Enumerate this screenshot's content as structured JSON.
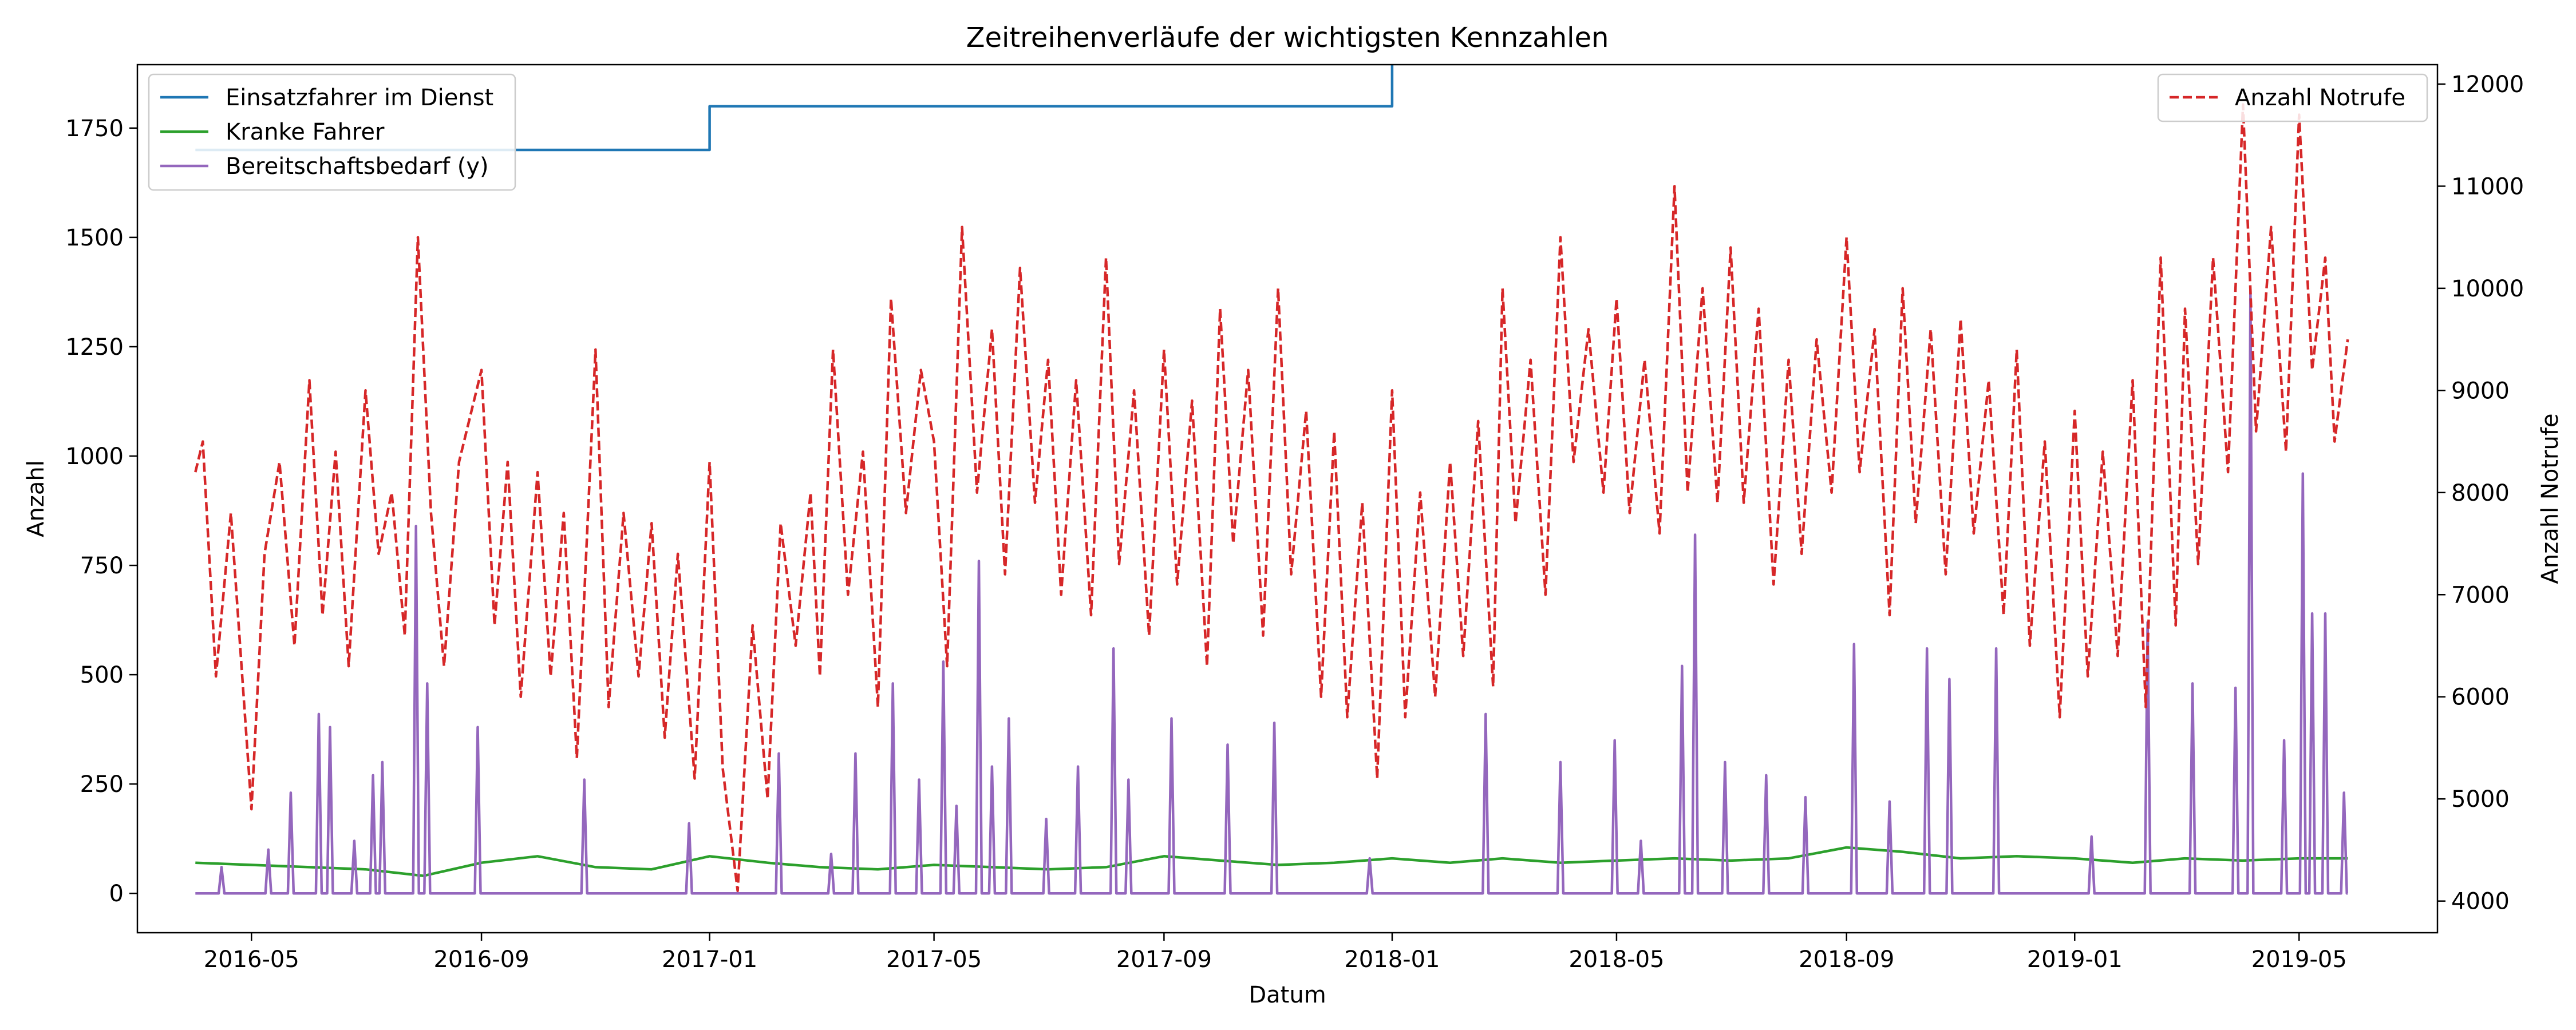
{
  "chart_data": {
    "type": "line",
    "title": "Zeitreihenverläufe der wichtigsten Kennzahlen",
    "xlabel": "Datum",
    "ylabel": "Anzahl",
    "ylabel_right": "Anzahl Notrufe",
    "x_range": [
      "2016-03-01",
      "2019-07-14"
    ],
    "ylim": [
      -90,
      1895
    ],
    "ylim_right": [
      3690,
      12190
    ],
    "x_ticks": [
      "2016-05",
      "2016-09",
      "2017-01",
      "2017-05",
      "2017-09",
      "2018-01",
      "2018-05",
      "2018-09",
      "2019-01",
      "2019-05"
    ],
    "y_ticks": [
      0,
      250,
      500,
      750,
      1000,
      1250,
      1500,
      1750
    ],
    "y_ticks_right": [
      4000,
      5000,
      6000,
      7000,
      8000,
      9000,
      10000,
      11000,
      12000
    ],
    "grid": false,
    "legend_left": "top-left",
    "legend_right": "top-right",
    "series": [
      {
        "name": "Einsatzfahrer im Dienst",
        "axis": "left",
        "color": "#1f77b4",
        "style": "solid",
        "steps": [
          {
            "from": "2016-04-01",
            "value": 1700
          },
          {
            "from": "2017-01-01",
            "value": 1800
          },
          {
            "from": "2018-01-01",
            "value": 1900
          }
        ],
        "end": "2019-05-27"
      },
      {
        "name": "Kranke Fahrer",
        "axis": "left",
        "color": "#2ca02c",
        "style": "solid",
        "points": [
          [
            "2016-04-01",
            70
          ],
          [
            "2016-05-01",
            65
          ],
          [
            "2016-06-01",
            60
          ],
          [
            "2016-07-01",
            55
          ],
          [
            "2016-08-01",
            40
          ],
          [
            "2016-09-01",
            70
          ],
          [
            "2016-10-01",
            85
          ],
          [
            "2016-11-01",
            60
          ],
          [
            "2016-12-01",
            55
          ],
          [
            "2017-01-01",
            85
          ],
          [
            "2017-02-01",
            70
          ],
          [
            "2017-03-01",
            60
          ],
          [
            "2017-04-01",
            55
          ],
          [
            "2017-05-01",
            65
          ],
          [
            "2017-06-01",
            60
          ],
          [
            "2017-07-01",
            55
          ],
          [
            "2017-08-01",
            60
          ],
          [
            "2017-09-01",
            85
          ],
          [
            "2017-10-01",
            75
          ],
          [
            "2017-11-01",
            65
          ],
          [
            "2017-12-01",
            70
          ],
          [
            "2018-01-01",
            80
          ],
          [
            "2018-02-01",
            70
          ],
          [
            "2018-03-01",
            80
          ],
          [
            "2018-04-01",
            70
          ],
          [
            "2018-05-01",
            75
          ],
          [
            "2018-06-01",
            80
          ],
          [
            "2018-07-01",
            75
          ],
          [
            "2018-08-01",
            80
          ],
          [
            "2018-09-01",
            105
          ],
          [
            "2018-10-01",
            95
          ],
          [
            "2018-11-01",
            80
          ],
          [
            "2018-12-01",
            85
          ],
          [
            "2019-01-01",
            80
          ],
          [
            "2019-02-01",
            70
          ],
          [
            "2019-03-01",
            80
          ],
          [
            "2019-04-01",
            75
          ],
          [
            "2019-05-01",
            80
          ],
          [
            "2019-05-27",
            80
          ]
        ]
      },
      {
        "name": "Bereitschaftsbedarf (y)",
        "axis": "left",
        "color": "#9467bd",
        "style": "solid",
        "spikes": [
          [
            "2016-04-15",
            60
          ],
          [
            "2016-05-10",
            100
          ],
          [
            "2016-05-22",
            230
          ],
          [
            "2016-06-06",
            410
          ],
          [
            "2016-06-12",
            380
          ],
          [
            "2016-06-25",
            120
          ],
          [
            "2016-07-05",
            270
          ],
          [
            "2016-07-10",
            300
          ],
          [
            "2016-07-28",
            840
          ],
          [
            "2016-08-03",
            480
          ],
          [
            "2016-08-30",
            380
          ],
          [
            "2016-10-26",
            260
          ],
          [
            "2016-12-21",
            160
          ],
          [
            "2017-02-07",
            320
          ],
          [
            "2017-03-07",
            90
          ],
          [
            "2017-03-20",
            320
          ],
          [
            "2017-04-09",
            480
          ],
          [
            "2017-04-23",
            260
          ],
          [
            "2017-05-06",
            530
          ],
          [
            "2017-05-13",
            200
          ],
          [
            "2017-05-25",
            760
          ],
          [
            "2017-06-01",
            290
          ],
          [
            "2017-06-10",
            400
          ],
          [
            "2017-06-30",
            170
          ],
          [
            "2017-07-17",
            290
          ],
          [
            "2017-08-05",
            560
          ],
          [
            "2017-08-13",
            260
          ],
          [
            "2017-09-05",
            400
          ],
          [
            "2017-10-05",
            340
          ],
          [
            "2017-10-30",
            390
          ],
          [
            "2017-12-20",
            80
          ],
          [
            "2018-02-20",
            410
          ],
          [
            "2018-04-01",
            300
          ],
          [
            "2018-04-30",
            350
          ],
          [
            "2018-05-14",
            120
          ],
          [
            "2018-06-05",
            520
          ],
          [
            "2018-06-12",
            820
          ],
          [
            "2018-06-28",
            300
          ],
          [
            "2018-07-20",
            270
          ],
          [
            "2018-08-10",
            220
          ],
          [
            "2018-09-05",
            570
          ],
          [
            "2018-09-24",
            210
          ],
          [
            "2018-10-14",
            560
          ],
          [
            "2018-10-26",
            490
          ],
          [
            "2018-11-20",
            560
          ],
          [
            "2019-01-10",
            130
          ],
          [
            "2019-02-09",
            620
          ],
          [
            "2019-03-05",
            480
          ],
          [
            "2019-03-28",
            470
          ],
          [
            "2019-04-05",
            1380
          ],
          [
            "2019-04-23",
            350
          ],
          [
            "2019-05-03",
            960
          ],
          [
            "2019-05-08",
            640
          ],
          [
            "2019-05-15",
            640
          ],
          [
            "2019-05-25",
            230
          ]
        ],
        "end": "2019-05-27"
      },
      {
        "name": "Anzahl Notrufe",
        "axis": "right",
        "color": "#d62728",
        "style": "dashed",
        "points": [
          [
            "2016-04-01",
            8200
          ],
          [
            "2016-04-05",
            8500
          ],
          [
            "2016-04-12",
            6200
          ],
          [
            "2016-04-20",
            7800
          ],
          [
            "2016-05-01",
            4900
          ],
          [
            "2016-05-08",
            7400
          ],
          [
            "2016-05-16",
            8300
          ],
          [
            "2016-05-24",
            6500
          ],
          [
            "2016-06-01",
            9100
          ],
          [
            "2016-06-08",
            6800
          ],
          [
            "2016-06-15",
            8400
          ],
          [
            "2016-06-22",
            6300
          ],
          [
            "2016-07-01",
            9000
          ],
          [
            "2016-07-08",
            7400
          ],
          [
            "2016-07-15",
            8000
          ],
          [
            "2016-07-22",
            6600
          ],
          [
            "2016-07-29",
            10500
          ],
          [
            "2016-08-05",
            7800
          ],
          [
            "2016-08-12",
            6300
          ],
          [
            "2016-08-20",
            8300
          ],
          [
            "2016-09-01",
            9200
          ],
          [
            "2016-09-08",
            6700
          ],
          [
            "2016-09-15",
            8300
          ],
          [
            "2016-09-22",
            6000
          ],
          [
            "2016-10-01",
            8200
          ],
          [
            "2016-10-08",
            6200
          ],
          [
            "2016-10-15",
            7800
          ],
          [
            "2016-10-22",
            5400
          ],
          [
            "2016-11-01",
            9400
          ],
          [
            "2016-11-08",
            5900
          ],
          [
            "2016-11-16",
            7800
          ],
          [
            "2016-11-24",
            6200
          ],
          [
            "2016-12-01",
            7700
          ],
          [
            "2016-12-08",
            5600
          ],
          [
            "2016-12-15",
            7400
          ],
          [
            "2016-12-24",
            5200
          ],
          [
            "2017-01-01",
            8300
          ],
          [
            "2017-01-08",
            5300
          ],
          [
            "2017-01-16",
            4100
          ],
          [
            "2017-01-24",
            6700
          ],
          [
            "2017-02-01",
            5000
          ],
          [
            "2017-02-08",
            7700
          ],
          [
            "2017-02-16",
            6500
          ],
          [
            "2017-02-24",
            8000
          ],
          [
            "2017-03-01",
            6200
          ],
          [
            "2017-03-08",
            9400
          ],
          [
            "2017-03-16",
            7000
          ],
          [
            "2017-03-24",
            8400
          ],
          [
            "2017-04-01",
            5900
          ],
          [
            "2017-04-08",
            9900
          ],
          [
            "2017-04-16",
            7800
          ],
          [
            "2017-04-24",
            9200
          ],
          [
            "2017-05-01",
            8500
          ],
          [
            "2017-05-08",
            6300
          ],
          [
            "2017-05-16",
            10600
          ],
          [
            "2017-05-24",
            8000
          ],
          [
            "2017-06-01",
            9600
          ],
          [
            "2017-06-08",
            7200
          ],
          [
            "2017-06-16",
            10200
          ],
          [
            "2017-06-24",
            7900
          ],
          [
            "2017-07-01",
            9300
          ],
          [
            "2017-07-08",
            7000
          ],
          [
            "2017-07-16",
            9100
          ],
          [
            "2017-07-24",
            6800
          ],
          [
            "2017-08-01",
            10300
          ],
          [
            "2017-08-08",
            7300
          ],
          [
            "2017-08-16",
            9000
          ],
          [
            "2017-08-24",
            6600
          ],
          [
            "2017-09-01",
            9400
          ],
          [
            "2017-09-08",
            7100
          ],
          [
            "2017-09-16",
            8900
          ],
          [
            "2017-09-24",
            6300
          ],
          [
            "2017-10-01",
            9800
          ],
          [
            "2017-10-08",
            7500
          ],
          [
            "2017-10-16",
            9200
          ],
          [
            "2017-10-24",
            6600
          ],
          [
            "2017-11-01",
            10000
          ],
          [
            "2017-11-08",
            7200
          ],
          [
            "2017-11-16",
            8800
          ],
          [
            "2017-11-24",
            6000
          ],
          [
            "2017-12-01",
            8600
          ],
          [
            "2017-12-08",
            5800
          ],
          [
            "2017-12-16",
            7900
          ],
          [
            "2017-12-24",
            5200
          ],
          [
            "2018-01-01",
            9000
          ],
          [
            "2018-01-08",
            5800
          ],
          [
            "2018-01-16",
            8000
          ],
          [
            "2018-01-24",
            6000
          ],
          [
            "2018-02-01",
            8300
          ],
          [
            "2018-02-08",
            6400
          ],
          [
            "2018-02-16",
            8700
          ],
          [
            "2018-02-24",
            6100
          ],
          [
            "2018-03-01",
            10000
          ],
          [
            "2018-03-08",
            7700
          ],
          [
            "2018-03-16",
            9300
          ],
          [
            "2018-03-24",
            7000
          ],
          [
            "2018-04-01",
            10500
          ],
          [
            "2018-04-08",
            8300
          ],
          [
            "2018-04-16",
            9600
          ],
          [
            "2018-04-24",
            8000
          ],
          [
            "2018-05-01",
            9900
          ],
          [
            "2018-05-08",
            7800
          ],
          [
            "2018-05-16",
            9300
          ],
          [
            "2018-05-24",
            7600
          ],
          [
            "2018-06-01",
            11000
          ],
          [
            "2018-06-08",
            8000
          ],
          [
            "2018-06-16",
            10000
          ],
          [
            "2018-06-24",
            7900
          ],
          [
            "2018-07-01",
            10400
          ],
          [
            "2018-07-08",
            7900
          ],
          [
            "2018-07-16",
            9800
          ],
          [
            "2018-07-24",
            7100
          ],
          [
            "2018-08-01",
            9300
          ],
          [
            "2018-08-08",
            7400
          ],
          [
            "2018-08-16",
            9500
          ],
          [
            "2018-08-24",
            8000
          ],
          [
            "2018-09-01",
            10500
          ],
          [
            "2018-09-08",
            8200
          ],
          [
            "2018-09-16",
            9600
          ],
          [
            "2018-09-24",
            6800
          ],
          [
            "2018-10-01",
            10000
          ],
          [
            "2018-10-08",
            7700
          ],
          [
            "2018-10-16",
            9600
          ],
          [
            "2018-10-24",
            7200
          ],
          [
            "2018-11-01",
            9700
          ],
          [
            "2018-11-08",
            7600
          ],
          [
            "2018-11-16",
            9100
          ],
          [
            "2018-11-24",
            6800
          ],
          [
            "2018-12-01",
            9400
          ],
          [
            "2018-12-08",
            6500
          ],
          [
            "2018-12-16",
            8500
          ],
          [
            "2018-12-24",
            5800
          ],
          [
            "2019-01-01",
            8800
          ],
          [
            "2019-01-08",
            6200
          ],
          [
            "2019-01-16",
            8400
          ],
          [
            "2019-01-24",
            6400
          ],
          [
            "2019-02-01",
            9100
          ],
          [
            "2019-02-08",
            5900
          ],
          [
            "2019-02-16",
            10300
          ],
          [
            "2019-02-24",
            6700
          ],
          [
            "2019-03-01",
            9800
          ],
          [
            "2019-03-08",
            7300
          ],
          [
            "2019-03-16",
            10300
          ],
          [
            "2019-03-24",
            8200
          ],
          [
            "2019-04-01",
            11800
          ],
          [
            "2019-04-08",
            8600
          ],
          [
            "2019-04-16",
            10600
          ],
          [
            "2019-04-24",
            8400
          ],
          [
            "2019-05-01",
            11700
          ],
          [
            "2019-05-08",
            9200
          ],
          [
            "2019-05-15",
            10300
          ],
          [
            "2019-05-20",
            8500
          ],
          [
            "2019-05-27",
            9500
          ]
        ]
      }
    ]
  }
}
